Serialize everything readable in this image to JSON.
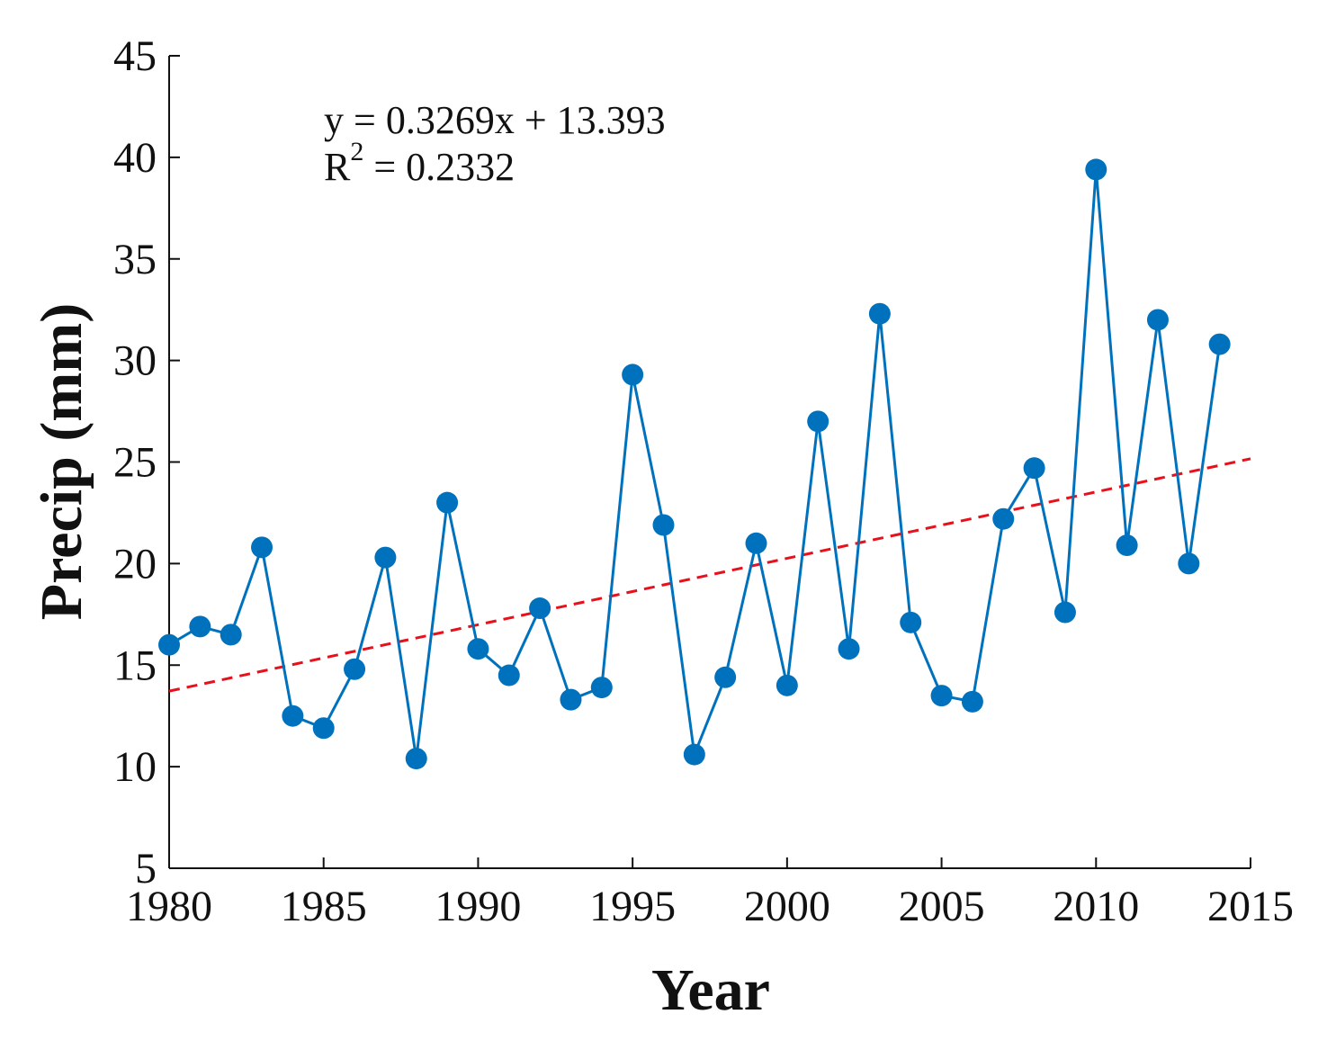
{
  "chart_data": {
    "type": "line",
    "title": "",
    "xlabel": "Year",
    "ylabel": "Precip (mm)",
    "xlim": [
      1980,
      2015
    ],
    "ylim": [
      5,
      45
    ],
    "xticks": [
      1980,
      1985,
      1990,
      1995,
      2000,
      2005,
      2010,
      2015
    ],
    "yticks": [
      5,
      10,
      15,
      20,
      25,
      30,
      35,
      40,
      45
    ],
    "grid": false,
    "series": [
      {
        "name": "Precip",
        "color": "#0072BD",
        "marker": "circle",
        "x": [
          1980,
          1981,
          1982,
          1983,
          1984,
          1985,
          1986,
          1987,
          1988,
          1989,
          1990,
          1991,
          1992,
          1993,
          1994,
          1995,
          1996,
          1997,
          1998,
          1999,
          2000,
          2001,
          2002,
          2003,
          2004,
          2005,
          2006,
          2007,
          2008,
          2009,
          2010,
          2011,
          2012,
          2013,
          2014
        ],
        "values": [
          16.0,
          16.9,
          16.5,
          20.8,
          12.5,
          11.9,
          14.8,
          20.3,
          10.4,
          23.0,
          15.8,
          14.5,
          17.8,
          13.3,
          13.9,
          29.3,
          21.9,
          10.6,
          14.4,
          21.0,
          14.0,
          27.0,
          15.8,
          32.3,
          17.1,
          13.5,
          13.2,
          22.2,
          24.7,
          17.6,
          39.4,
          20.9,
          32.0,
          20.0,
          30.8
        ]
      }
    ],
    "trendline": {
      "name": "Linear trend",
      "color": "#E8101A",
      "style": "dashed",
      "slope": 0.3269,
      "intercept": 13.393,
      "x_start": 1980,
      "x_end": 2015,
      "equation": "y = 0.3269x + 13.393",
      "r2_label": "R",
      "r2_sup": "2",
      "r2_value": " = 0.2332"
    }
  }
}
